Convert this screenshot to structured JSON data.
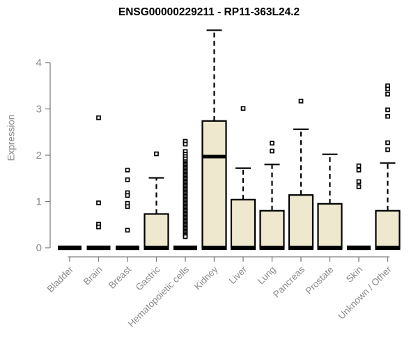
{
  "chart_data": {
    "type": "boxplot",
    "title": "ENSG00000229211 - RP11-363L24.2",
    "ylabel": "Expression",
    "xlabel": "",
    "ylim": [
      -0.2,
      4.8
    ],
    "y_ticks": [
      0,
      1,
      2,
      3,
      4
    ],
    "grid": false,
    "legend": false,
    "categories": [
      "Bladder",
      "Brain",
      "Breast",
      "Gastric",
      "Hematopoietic cells",
      "Kidney",
      "Liver",
      "Lung",
      "Pancreas",
      "Prostate",
      "Skin",
      "Unknown / Other"
    ],
    "series": [
      {
        "category": "Bladder",
        "whisker_low": 0,
        "q1": 0,
        "median": 0,
        "q3": 0,
        "whisker_high": 0,
        "outliers": []
      },
      {
        "category": "Brain",
        "whisker_low": 0,
        "q1": 0,
        "median": 0,
        "q3": 0,
        "whisker_high": 0,
        "outliers": [
          2.81,
          0.97,
          0.51,
          0.45
        ]
      },
      {
        "category": "Breast",
        "whisker_low": 0,
        "q1": 0,
        "median": 0,
        "q3": 0,
        "whisker_high": 0,
        "outliers": [
          1.68,
          1.47,
          1.19,
          1.13,
          0.96,
          0.89,
          0.38
        ]
      },
      {
        "category": "Gastric",
        "whisker_low": 0,
        "q1": 0,
        "median": 0,
        "q3": 0.73,
        "whisker_high": 1.51,
        "outliers": [
          2.03
        ]
      },
      {
        "category": "Hematopoietic cells",
        "whisker_low": 0,
        "q1": 0,
        "median": 0,
        "q3": 0,
        "whisker_high": 0,
        "outliers": [
          2.3,
          2.24,
          2.08,
          2.02,
          1.97,
          1.92,
          1.86,
          1.83,
          1.8,
          1.77,
          1.74,
          1.71,
          1.68,
          1.65,
          1.62,
          1.59,
          1.56,
          1.53,
          1.5,
          1.47,
          1.44,
          1.41,
          1.38,
          1.35,
          1.32,
          1.29,
          1.26,
          1.23,
          1.2,
          1.17,
          1.14,
          1.11,
          1.08,
          1.05,
          1.02,
          0.99,
          0.96,
          0.93,
          0.9,
          0.87,
          0.84,
          0.81,
          0.78,
          0.75,
          0.72,
          0.69,
          0.66,
          0.63,
          0.6,
          0.57,
          0.54,
          0.51,
          0.48,
          0.45,
          0.42,
          0.39,
          0.36,
          0.33,
          0.3,
          0.27,
          0.24
        ]
      },
      {
        "category": "Kidney",
        "whisker_low": 0,
        "q1": 0,
        "median": 1.97,
        "q3": 2.74,
        "whisker_high": 4.7,
        "outliers": []
      },
      {
        "category": "Liver",
        "whisker_low": 0,
        "q1": 0,
        "median": 0,
        "q3": 1.04,
        "whisker_high": 1.72,
        "outliers": [
          3.01
        ]
      },
      {
        "category": "Lung",
        "whisker_low": 0,
        "q1": 0,
        "median": 0,
        "q3": 0.8,
        "whisker_high": 1.8,
        "outliers": [
          2.26,
          2.09
        ]
      },
      {
        "category": "Pancreas",
        "whisker_low": 0,
        "q1": 0,
        "median": 0,
        "q3": 1.14,
        "whisker_high": 2.56,
        "outliers": [
          3.17
        ]
      },
      {
        "category": "Prostate",
        "whisker_low": 0,
        "q1": 0,
        "median": 0,
        "q3": 0.95,
        "whisker_high": 2.02,
        "outliers": []
      },
      {
        "category": "Skin",
        "whisker_low": 0,
        "q1": 0,
        "median": 0,
        "q3": 0,
        "whisker_high": 0,
        "outliers": [
          1.77,
          1.68,
          1.43,
          1.32
        ]
      },
      {
        "category": "Unknown / Other",
        "whisker_low": 0,
        "q1": 0,
        "median": 0,
        "q3": 0.8,
        "whisker_high": 1.83,
        "outliers": [
          3.5,
          3.43,
          3.32,
          2.98,
          2.84,
          2.27,
          2.12
        ]
      }
    ]
  },
  "colors": {
    "background": "#ffffff",
    "title": "#000000",
    "box_fill": "#ede8ce",
    "box_border": "#000000",
    "median": "#000000",
    "whisker": "#000000",
    "outlier_fill": "#ffffff",
    "outlier_border": "#000000",
    "axis_line": "#7f7f7f",
    "tick_label": "#8a8a8a"
  }
}
